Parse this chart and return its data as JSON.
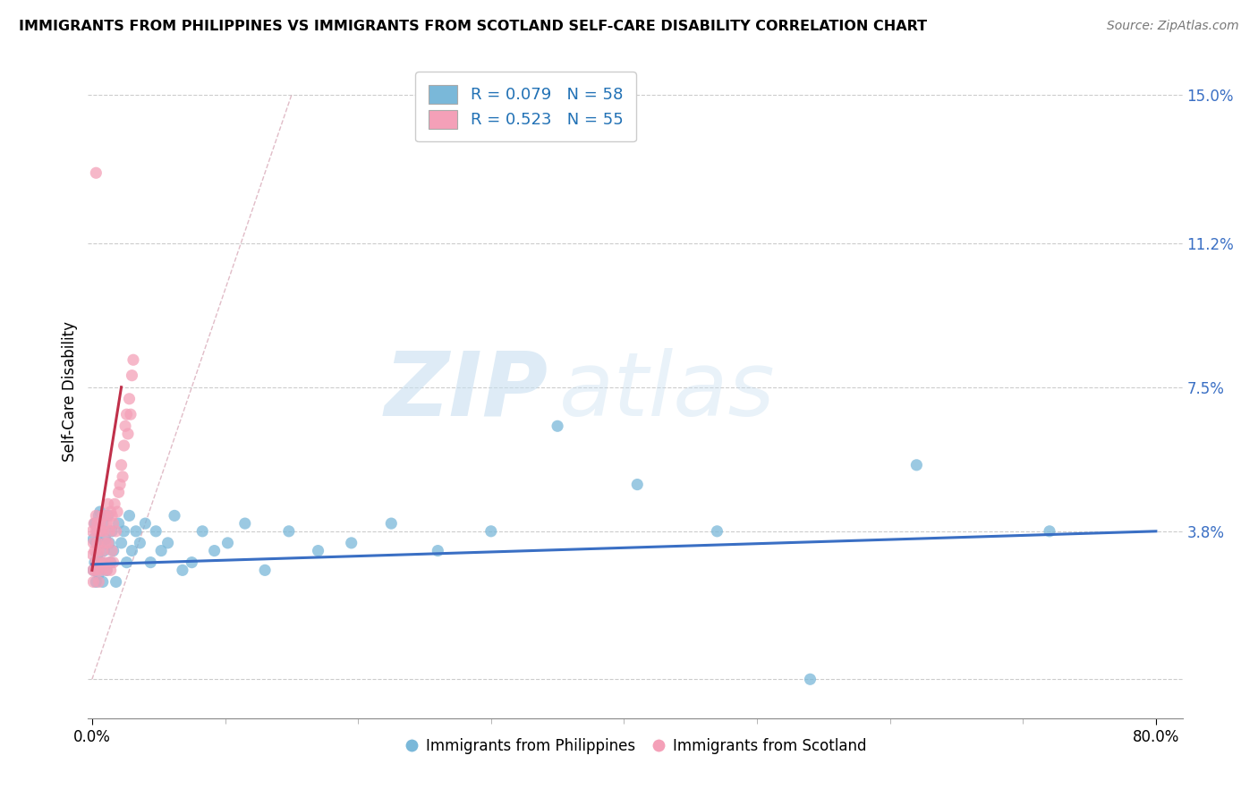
{
  "title": "IMMIGRANTS FROM PHILIPPINES VS IMMIGRANTS FROM SCOTLAND SELF-CARE DISABILITY CORRELATION CHART",
  "source": "Source: ZipAtlas.com",
  "ylabel": "Self-Care Disability",
  "yticks": [
    0.0,
    0.038,
    0.075,
    0.112,
    0.15
  ],
  "ytick_labels": [
    "",
    "3.8%",
    "7.5%",
    "11.2%",
    "15.0%"
  ],
  "xlim": [
    -0.003,
    0.82
  ],
  "ylim": [
    -0.01,
    0.158
  ],
  "legend_r1": "R = 0.079   N = 58",
  "legend_r2": "R = 0.523   N = 55",
  "legend_label1": "Immigrants from Philippines",
  "legend_label2": "Immigrants from Scotland",
  "color_philippines": "#7ab8d9",
  "color_scotland": "#f4a0b8",
  "color_trendline_philippines": "#3a6fc4",
  "color_trendline_scotland": "#c0304a",
  "watermark_zip": "ZIP",
  "watermark_atlas": "atlas",
  "background_color": "#ffffff",
  "grid_color": "#cccccc",
  "phil_x": [
    0.001,
    0.001,
    0.002,
    0.002,
    0.003,
    0.003,
    0.004,
    0.004,
    0.005,
    0.005,
    0.006,
    0.006,
    0.007,
    0.007,
    0.008,
    0.008,
    0.009,
    0.01,
    0.011,
    0.012,
    0.013,
    0.014,
    0.015,
    0.016,
    0.018,
    0.02,
    0.022,
    0.024,
    0.026,
    0.028,
    0.03,
    0.033,
    0.036,
    0.04,
    0.044,
    0.048,
    0.052,
    0.057,
    0.062,
    0.068,
    0.075,
    0.083,
    0.092,
    0.102,
    0.115,
    0.13,
    0.148,
    0.17,
    0.195,
    0.225,
    0.26,
    0.3,
    0.35,
    0.41,
    0.47,
    0.54,
    0.62,
    0.72
  ],
  "phil_y": [
    0.036,
    0.028,
    0.04,
    0.03,
    0.035,
    0.025,
    0.038,
    0.032,
    0.042,
    0.027,
    0.035,
    0.043,
    0.03,
    0.038,
    0.025,
    0.04,
    0.033,
    0.036,
    0.028,
    0.042,
    0.035,
    0.03,
    0.038,
    0.033,
    0.025,
    0.04,
    0.035,
    0.038,
    0.03,
    0.042,
    0.033,
    0.038,
    0.035,
    0.04,
    0.03,
    0.038,
    0.033,
    0.035,
    0.042,
    0.028,
    0.03,
    0.038,
    0.033,
    0.035,
    0.04,
    0.028,
    0.038,
    0.033,
    0.035,
    0.04,
    0.033,
    0.038,
    0.065,
    0.05,
    0.038,
    0.0,
    0.055,
    0.038
  ],
  "scot_x": [
    0.0003,
    0.0005,
    0.0007,
    0.001,
    0.001,
    0.0015,
    0.002,
    0.002,
    0.003,
    0.003,
    0.003,
    0.004,
    0.004,
    0.004,
    0.005,
    0.005,
    0.005,
    0.006,
    0.006,
    0.007,
    0.007,
    0.008,
    0.008,
    0.009,
    0.009,
    0.01,
    0.01,
    0.011,
    0.011,
    0.012,
    0.012,
    0.013,
    0.013,
    0.014,
    0.014,
    0.015,
    0.015,
    0.016,
    0.016,
    0.017,
    0.018,
    0.019,
    0.02,
    0.021,
    0.022,
    0.023,
    0.024,
    0.025,
    0.026,
    0.027,
    0.028,
    0.029,
    0.03,
    0.031,
    0.003
  ],
  "scot_y": [
    0.038,
    0.032,
    0.028,
    0.035,
    0.025,
    0.04,
    0.033,
    0.028,
    0.038,
    0.03,
    0.042,
    0.035,
    0.028,
    0.04,
    0.033,
    0.038,
    0.025,
    0.04,
    0.03,
    0.038,
    0.028,
    0.042,
    0.033,
    0.038,
    0.03,
    0.042,
    0.035,
    0.04,
    0.028,
    0.045,
    0.035,
    0.038,
    0.03,
    0.043,
    0.028,
    0.042,
    0.033,
    0.04,
    0.03,
    0.045,
    0.038,
    0.043,
    0.048,
    0.05,
    0.055,
    0.052,
    0.06,
    0.065,
    0.068,
    0.063,
    0.072,
    0.068,
    0.078,
    0.082,
    0.13
  ]
}
